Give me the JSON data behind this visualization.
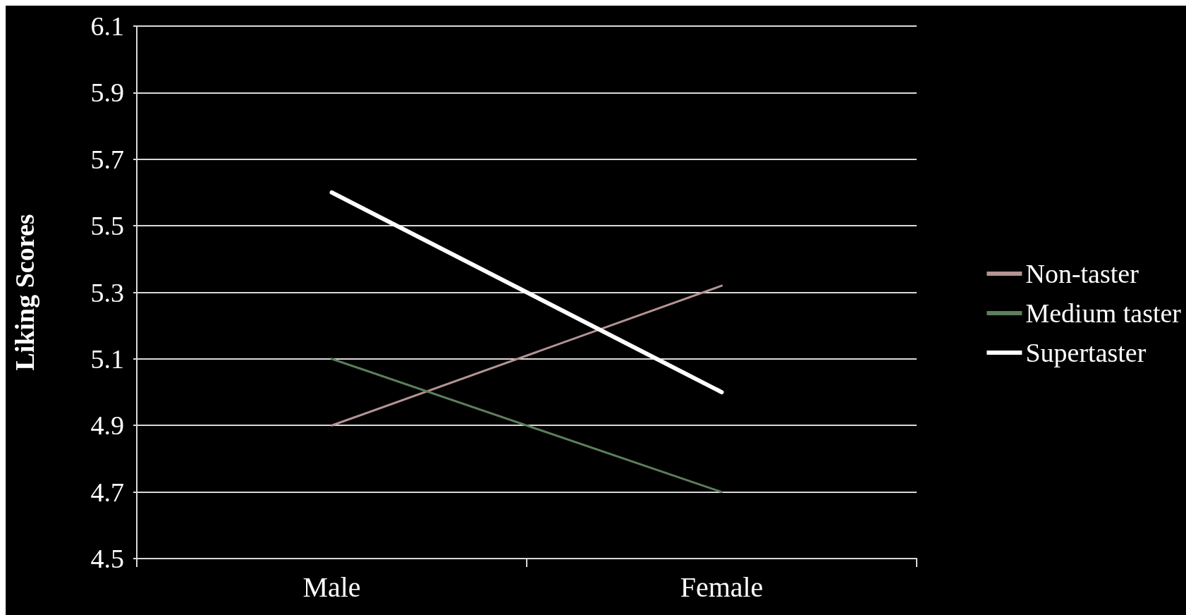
{
  "chart_data": {
    "type": "line",
    "ylabel": "Liking Scores",
    "categories": [
      "Male",
      "Female"
    ],
    "series": [
      {
        "name": "Non-taster",
        "color": "#b49494",
        "values": [
          4.9,
          5.32
        ]
      },
      {
        "name": "Medium taster",
        "color": "#5c7f5c",
        "values": [
          5.1,
          4.7
        ]
      },
      {
        "name": "Supertaster",
        "color": "#ffffff",
        "values": [
          5.6,
          5.0
        ]
      }
    ],
    "ylim": [
      4.5,
      6.1
    ],
    "yticks": [
      4.5,
      4.7,
      4.9,
      5.1,
      5.3,
      5.5,
      5.7,
      5.9,
      6.1
    ],
    "grid": "y",
    "legend": "right",
    "marker": "none",
    "line_style": "solid"
  }
}
